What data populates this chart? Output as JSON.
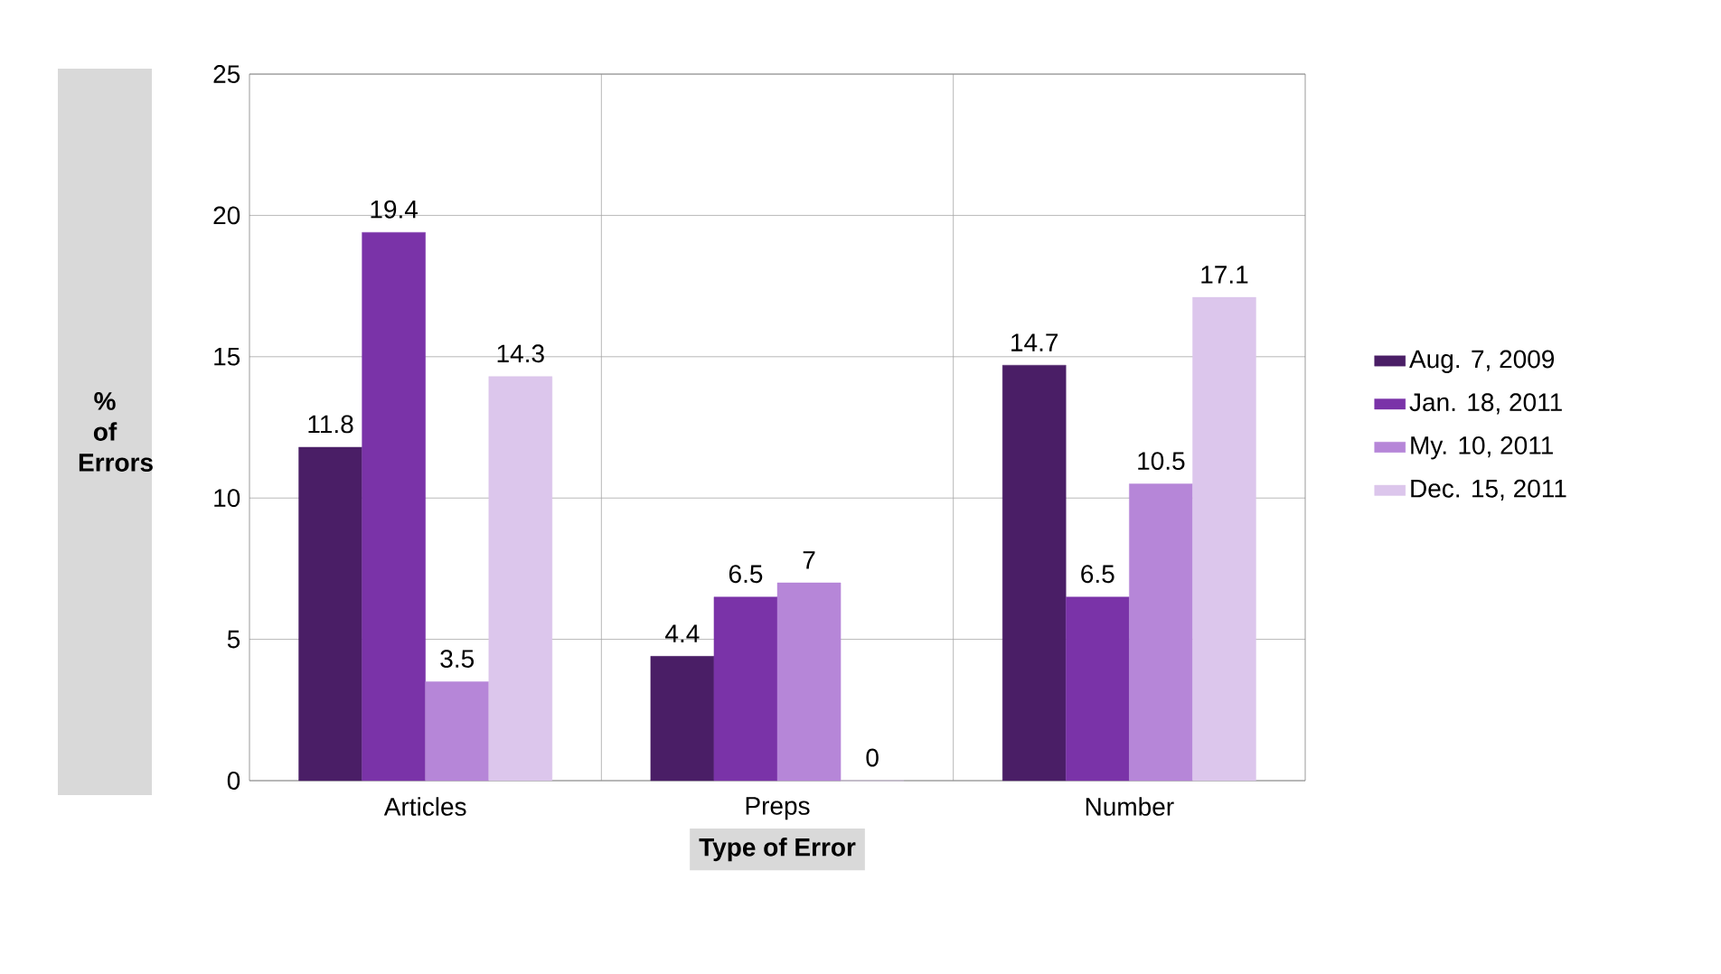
{
  "chart_data": {
    "type": "bar",
    "xlabel": "Type of Error",
    "ylabel": "% of Errors",
    "categories": [
      "Articles",
      "Preps",
      "Number"
    ],
    "series": [
      {
        "name": "Aug. 7, 2009",
        "color": "#4a1e66",
        "values": [
          11.8,
          4.4,
          14.7
        ]
      },
      {
        "name": "Jan. 18, 2011",
        "color": "#7a33a8",
        "values": [
          19.4,
          6.5,
          6.5
        ]
      },
      {
        "name": "My. 10, 2011",
        "color": "#b686d8",
        "values": [
          3.5,
          7,
          10.5
        ]
      },
      {
        "name": "Dec. 15, 2011",
        "color": "#dcc6ec",
        "values": [
          14.3,
          0,
          17.1
        ]
      }
    ],
    "ylim": [
      0,
      25
    ],
    "yticks": [
      0,
      5,
      10,
      15,
      20,
      25
    ],
    "grid": true,
    "legend": "right",
    "data_labels": true
  }
}
